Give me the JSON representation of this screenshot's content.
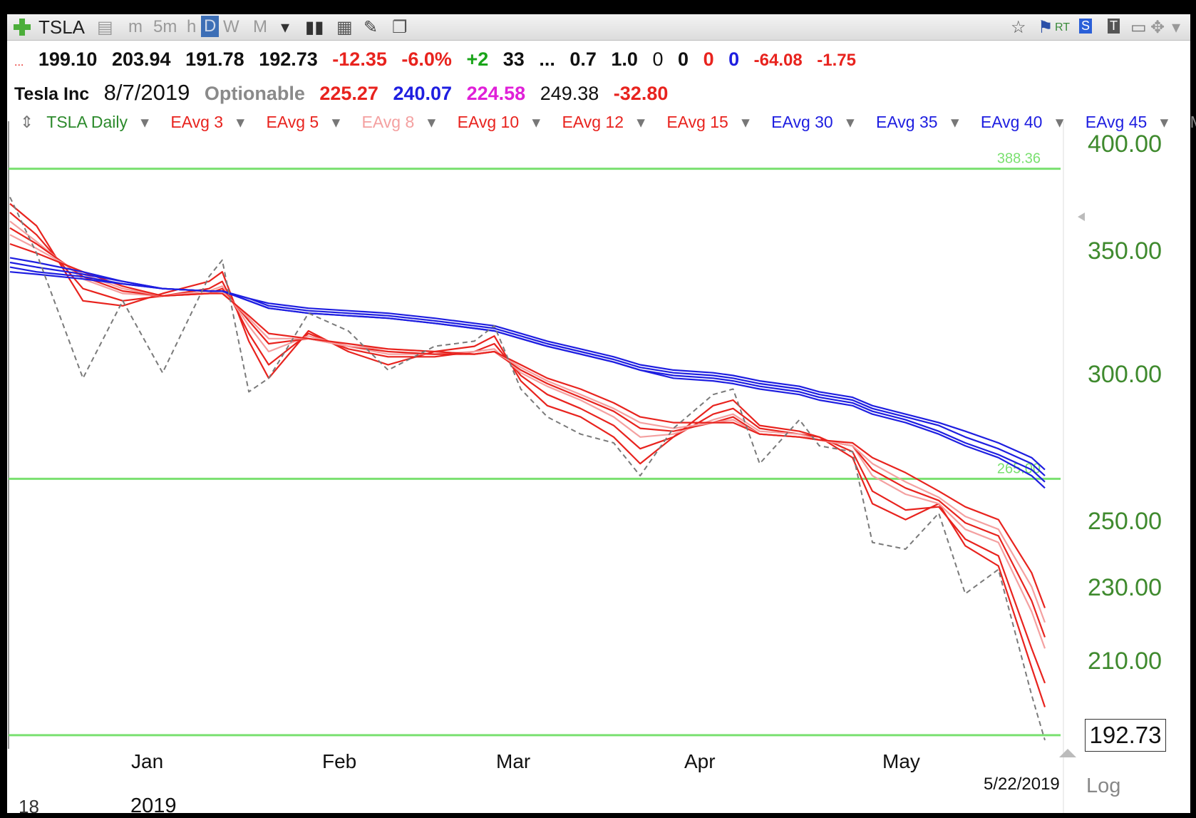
{
  "toolbar": {
    "symbol": "TSLA",
    "timeframes": [
      "m",
      "5m",
      "h",
      "D",
      "W",
      "M"
    ],
    "active_timeframe": "D",
    "right_badges": [
      "RT",
      "S",
      "T"
    ]
  },
  "quote_line1": {
    "prefix": "...",
    "open": "199.10",
    "high": "203.94",
    "low": "191.78",
    "close": "192.73",
    "change": "-12.35",
    "change_pct": "-6.0%",
    "plus": "+2",
    "count": "33",
    "dots": "...",
    "v1": "0.7",
    "v2": "1.0",
    "z1": "0",
    "z2": "0",
    "z3": "0",
    "z4": "0",
    "neg1": "-64.08",
    "neg2": "-1.75"
  },
  "quote_line2": {
    "name": "Tesla Inc",
    "date": "8/7/2019",
    "optionable": "Optionable",
    "p1": "225.27",
    "p2": "240.07",
    "p3": "224.58",
    "p4": "249.38",
    "p5": "-32.80"
  },
  "legend": {
    "title": "TSLA Daily",
    "items": [
      "EAvg 3",
      "EAvg 5",
      "EAvg 8",
      "EAvg 10",
      "EAvg 12",
      "EAvg 15",
      "EAvg 30",
      "EAvg 35",
      "EAvg 40",
      "EAvg 45"
    ],
    "more": "More"
  },
  "colors": {
    "short_ema": "#e8231e",
    "short_ema_light": "#f4a0a0",
    "long_ema": "#1e1ee0",
    "price": "#7a7a7a",
    "hline": "#7ae070",
    "ytick": "#3f8a2e"
  },
  "chart_data": {
    "type": "line",
    "scale": "log",
    "y_ticks": [
      "400.00",
      "350.00",
      "300.00",
      "250.00",
      "230.00",
      "210.00"
    ],
    "x_ticks": [
      "Jan",
      "Feb",
      "Mar",
      "Apr",
      "May"
    ],
    "year_label": "2019",
    "left_label": "18",
    "end_date": "5/22/2019",
    "last_price": "192.73",
    "log_label": "Log",
    "hlines": [
      {
        "value": 388.36,
        "label": "388.36"
      },
      {
        "value": 265.0,
        "label": "265.00"
      },
      {
        "value": 193.2,
        "label": ""
      }
    ],
    "dates": [
      "2018-12-17",
      "2018-12-21",
      "2018-12-28",
      "2019-01-03",
      "2019-01-09",
      "2019-01-16",
      "2019-01-18",
      "2019-01-22",
      "2019-01-25",
      "2019-01-31",
      "2019-02-06",
      "2019-02-12",
      "2019-02-19",
      "2019-02-25",
      "2019-02-28",
      "2019-03-04",
      "2019-03-08",
      "2019-03-13",
      "2019-03-18",
      "2019-03-22",
      "2019-03-27",
      "2019-04-02",
      "2019-04-05",
      "2019-04-09",
      "2019-04-15",
      "2019-04-18",
      "2019-04-23",
      "2019-04-26",
      "2019-05-01",
      "2019-05-06",
      "2019-05-10",
      "2019-05-15",
      "2019-05-20",
      "2019-05-22"
    ],
    "series": [
      {
        "name": "EAvg 3",
        "values": [
          372,
          362,
          330,
          328,
          333,
          338,
          342,
          314,
          300,
          318,
          310,
          305,
          310,
          312,
          316,
          299,
          290,
          286,
          279,
          270,
          279,
          290,
          292,
          283,
          281,
          279,
          272,
          257,
          252,
          257,
          244,
          238,
          210,
          200
        ]
      },
      {
        "name": "EAvg 5",
        "values": [
          368,
          358,
          335,
          330,
          332,
          335,
          338,
          317,
          305,
          317,
          311,
          308,
          308,
          310,
          313,
          301,
          294,
          289,
          283,
          275,
          279,
          287,
          289,
          282,
          280,
          279,
          274,
          261,
          255,
          256,
          246,
          241,
          215,
          206
        ]
      },
      {
        "name": "EAvg 8",
        "values": [
          364,
          355,
          339,
          333,
          332,
          334,
          336,
          320,
          310,
          316,
          312,
          309,
          309,
          310,
          311,
          302,
          297,
          292,
          286,
          279,
          280,
          285,
          287,
          281,
          280,
          278,
          276,
          266,
          260,
          257,
          249,
          245,
          225,
          215
        ]
      },
      {
        "name": "EAvg 10",
        "values": [
          361,
          354,
          340,
          334,
          332,
          333,
          335,
          322,
          313,
          315,
          312,
          310,
          309,
          309,
          310,
          303,
          298,
          293,
          288,
          282,
          281,
          284,
          286,
          280,
          279,
          278,
          276,
          268,
          262,
          258,
          251,
          247,
          228,
          218
        ]
      },
      {
        "name": "EAvg 12",
        "values": [
          358,
          352,
          341,
          335,
          332,
          333,
          334,
          323,
          315,
          315,
          312,
          311,
          310,
          309,
          310,
          304,
          299,
          294,
          289,
          284,
          282,
          284,
          285,
          280,
          279,
          278,
          276,
          270,
          264,
          259,
          253,
          249,
          232,
          222
        ]
      },
      {
        "name": "EAvg 15",
        "values": [
          354,
          350,
          342,
          336,
          332,
          333,
          333,
          324,
          317,
          315,
          313,
          311,
          310,
          309,
          310,
          305,
          300,
          296,
          291,
          286,
          284,
          284,
          284,
          280,
          279,
          278,
          277,
          272,
          267,
          261,
          256,
          252,
          236,
          226
        ]
      },
      {
        "name": "EAvg 30",
        "values": [
          348,
          346,
          342,
          338,
          335,
          334,
          334,
          330,
          327,
          325,
          324,
          323,
          321,
          319,
          318,
          315,
          312,
          309,
          306,
          303,
          300,
          299,
          298,
          296,
          294,
          292,
          290,
          287,
          284,
          280,
          276,
          272,
          266,
          262
        ]
      },
      {
        "name": "EAvg 35",
        "values": [
          346,
          344,
          341,
          338,
          335,
          334,
          334,
          330,
          327,
          325,
          324,
          323,
          321,
          319,
          318,
          315,
          312,
          309,
          306,
          303,
          301,
          300,
          299,
          297,
          295,
          293,
          291,
          288,
          285,
          281,
          277,
          273,
          268,
          264
        ]
      },
      {
        "name": "EAvg 40",
        "values": [
          344,
          342,
          340,
          337,
          335,
          334,
          334,
          331,
          328,
          326,
          325,
          324,
          322,
          320,
          319,
          316,
          313,
          310,
          307,
          304,
          302,
          301,
          300,
          298,
          296,
          294,
          292,
          289,
          286,
          283,
          279,
          275,
          270,
          266
        ]
      },
      {
        "name": "EAvg 45",
        "values": [
          342,
          341,
          339,
          337,
          335,
          334,
          334,
          331,
          329,
          327,
          326,
          325,
          323,
          321,
          320,
          317,
          314,
          311,
          308,
          305,
          303,
          302,
          301,
          299,
          297,
          295,
          293,
          290,
          287,
          284,
          281,
          277,
          272,
          268
        ]
      },
      {
        "name": "Price",
        "values": [
          375,
          350,
          300,
          330,
          302,
          340,
          347,
          295,
          300,
          325,
          318,
          303,
          312,
          314,
          320,
          296,
          286,
          280,
          277,
          266,
          282,
          294,
          296,
          270,
          285,
          276,
          274,
          245,
          243,
          254,
          230,
          237,
          203,
          192
        ]
      }
    ]
  }
}
